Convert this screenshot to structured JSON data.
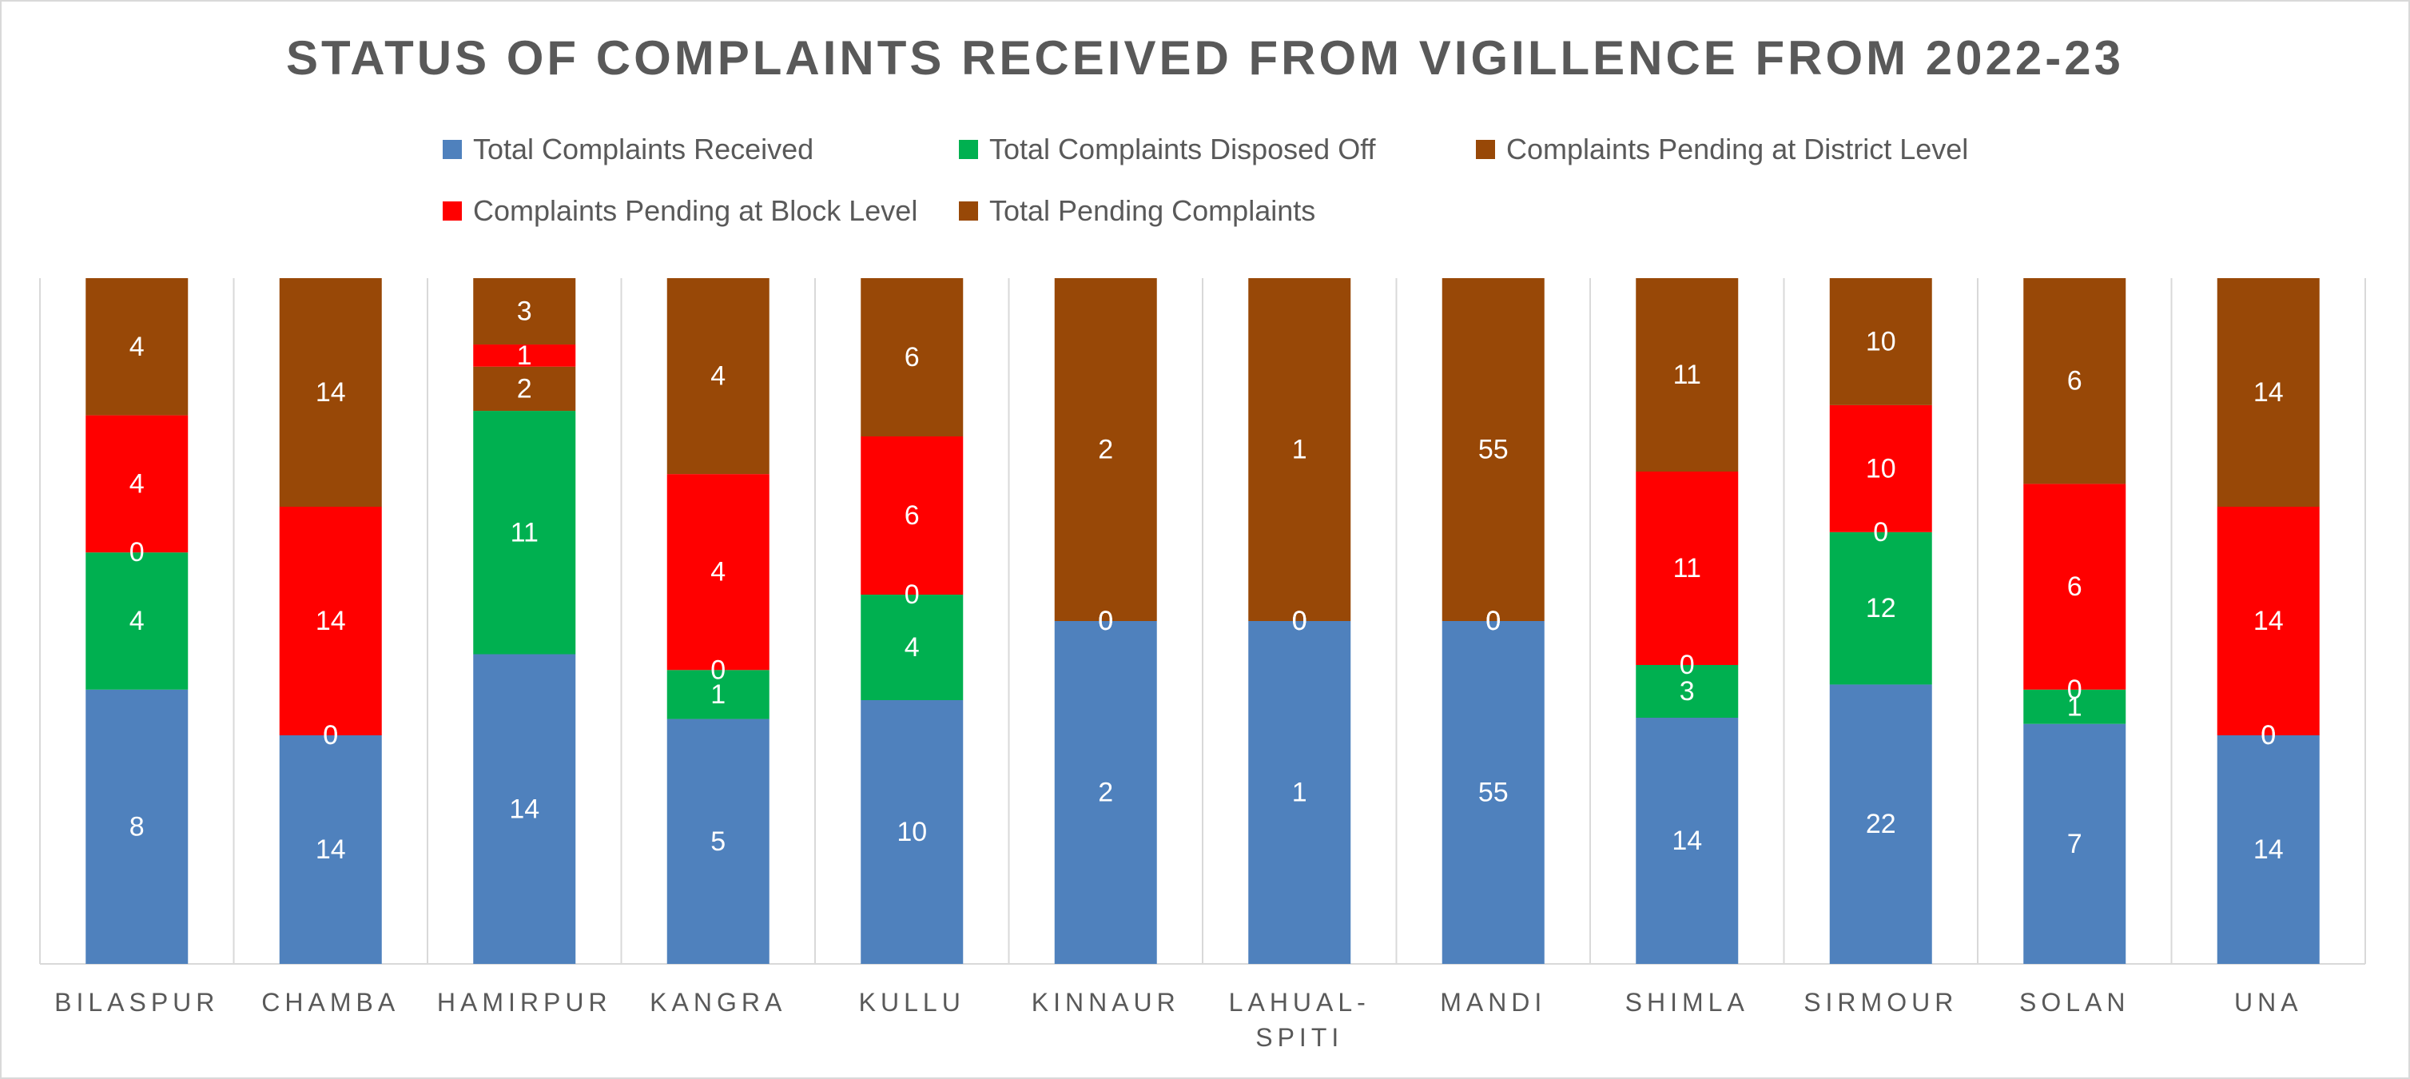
{
  "chart_data": {
    "type": "bar",
    "stacked": true,
    "title": "STATUS OF COMPLAINTS RECEIVED FROM VIGILLENCE FROM 2022-23",
    "categories": [
      "BILASPUR",
      "CHAMBA",
      "HAMIRPUR",
      "KANGRA",
      "KULLU",
      "KINNAUR",
      "LAHUAL-SPITI",
      "MANDI",
      "SHIMLA",
      "SIRMOUR",
      "SOLAN",
      "UNA"
    ],
    "series": [
      {
        "name": "Total Complaints Received",
        "color": "#4f81bd",
        "values": [
          8,
          14,
          14,
          5,
          10,
          2,
          1,
          55,
          14,
          22,
          7,
          14
        ]
      },
      {
        "name": "Total Complaints Disposed Off",
        "color": "#00b050",
        "values": [
          4,
          0,
          11,
          1,
          4,
          0,
          0,
          0,
          3,
          12,
          1,
          0
        ]
      },
      {
        "name": "Complaints Pending at District Level",
        "color": "#984807",
        "values": [
          0,
          0,
          2,
          0,
          0,
          0,
          0,
          0,
          0,
          0,
          0,
          0
        ]
      },
      {
        "name": "Complaints Pending at Block Level",
        "color": "#ff0000",
        "values": [
          4,
          14,
          1,
          4,
          6,
          0,
          0,
          0,
          11,
          10,
          6,
          14
        ]
      },
      {
        "name": "Total  Pending Complaints",
        "color": "#984807",
        "values": [
          4,
          14,
          3,
          4,
          6,
          2,
          1,
          55,
          11,
          10,
          6,
          14
        ]
      }
    ],
    "legend_position": "top",
    "grid": false
  }
}
